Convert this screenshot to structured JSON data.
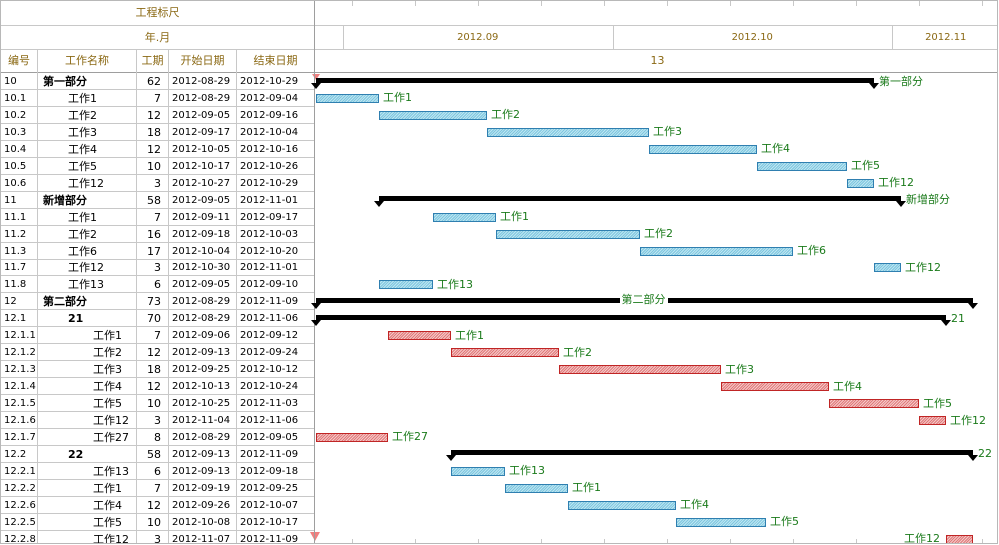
{
  "header": {
    "ruler_title": "工程标尺",
    "ruler_unit": "年.月",
    "col_id": "编号",
    "col_name": "工作名称",
    "col_dur": "工期",
    "col_start": "开始日期",
    "col_end": "结束日期",
    "week_label": "13"
  },
  "timeline": {
    "origin_date": "2012-08-29",
    "months": [
      {
        "label": "2012.09",
        "start": "2012-09-01"
      },
      {
        "label": "2012.10",
        "start": "2012-10-01"
      },
      {
        "label": "2012.11",
        "start": "2012-11-01"
      }
    ]
  },
  "colors": {
    "normal_bar": "#7fc6df",
    "critical_bar": "#e07a7a",
    "summary_bar": "#000000",
    "label": "#1a7a1a",
    "header_text": "#8b6914"
  },
  "rows": [
    {
      "id": "10",
      "name": "第一部分",
      "dur": "62",
      "start": "2012-08-29",
      "end": "2012-10-29",
      "level": 0,
      "kind": "summary",
      "label": "第一部分"
    },
    {
      "id": "10.1",
      "name": "工作1",
      "dur": "7",
      "start": "2012-08-29",
      "end": "2012-09-04",
      "level": 1,
      "kind": "blue",
      "label": "工作1"
    },
    {
      "id": "10.2",
      "name": "工作2",
      "dur": "12",
      "start": "2012-09-05",
      "end": "2012-09-16",
      "level": 1,
      "kind": "blue",
      "label": "工作2"
    },
    {
      "id": "10.3",
      "name": "工作3",
      "dur": "18",
      "start": "2012-09-17",
      "end": "2012-10-04",
      "level": 1,
      "kind": "blue",
      "label": "工作3"
    },
    {
      "id": "10.4",
      "name": "工作4",
      "dur": "12",
      "start": "2012-10-05",
      "end": "2012-10-16",
      "level": 1,
      "kind": "blue",
      "label": "工作4"
    },
    {
      "id": "10.5",
      "name": "工作5",
      "dur": "10",
      "start": "2012-10-17",
      "end": "2012-10-26",
      "level": 1,
      "kind": "blue",
      "label": "工作5"
    },
    {
      "id": "10.6",
      "name": "工作12",
      "dur": "3",
      "start": "2012-10-27",
      "end": "2012-10-29",
      "level": 1,
      "kind": "blue",
      "label": "工作12"
    },
    {
      "id": "11",
      "name": "新增部分",
      "dur": "58",
      "start": "2012-09-05",
      "end": "2012-11-01",
      "level": 0,
      "kind": "summary",
      "label": "新增部分"
    },
    {
      "id": "11.1",
      "name": "工作1",
      "dur": "7",
      "start": "2012-09-11",
      "end": "2012-09-17",
      "level": 1,
      "kind": "blue",
      "label": "工作1"
    },
    {
      "id": "11.2",
      "name": "工作2",
      "dur": "16",
      "start": "2012-09-18",
      "end": "2012-10-03",
      "level": 1,
      "kind": "blue",
      "label": "工作2"
    },
    {
      "id": "11.3",
      "name": "工作6",
      "dur": "17",
      "start": "2012-10-04",
      "end": "2012-10-20",
      "level": 1,
      "kind": "blue",
      "label": "工作6"
    },
    {
      "id": "11.7",
      "name": "工作12",
      "dur": "3",
      "start": "2012-10-30",
      "end": "2012-11-01",
      "level": 1,
      "kind": "blue",
      "label": "工作12"
    },
    {
      "id": "11.8",
      "name": "工作13",
      "dur": "6",
      "start": "2012-09-05",
      "end": "2012-09-10",
      "level": 1,
      "kind": "blue",
      "label": "工作13"
    },
    {
      "id": "12",
      "name": "第二部分",
      "dur": "73",
      "start": "2012-08-29",
      "end": "2012-11-09",
      "level": 0,
      "kind": "summary",
      "label": "第二部分",
      "label_center": true
    },
    {
      "id": "12.1",
      "name": "21",
      "dur": "70",
      "start": "2012-08-29",
      "end": "2012-11-06",
      "level": 1,
      "kind": "summary",
      "label": "21"
    },
    {
      "id": "12.1.1",
      "name": "工作1",
      "dur": "7",
      "start": "2012-09-06",
      "end": "2012-09-12",
      "level": 2,
      "kind": "red",
      "label": "工作1"
    },
    {
      "id": "12.1.2",
      "name": "工作2",
      "dur": "12",
      "start": "2012-09-13",
      "end": "2012-09-24",
      "level": 2,
      "kind": "red",
      "label": "工作2"
    },
    {
      "id": "12.1.3",
      "name": "工作3",
      "dur": "18",
      "start": "2012-09-25",
      "end": "2012-10-12",
      "level": 2,
      "kind": "red",
      "label": "工作3"
    },
    {
      "id": "12.1.4",
      "name": "工作4",
      "dur": "12",
      "start": "2012-10-13",
      "end": "2012-10-24",
      "level": 2,
      "kind": "red",
      "label": "工作4"
    },
    {
      "id": "12.1.5",
      "name": "工作5",
      "dur": "10",
      "start": "2012-10-25",
      "end": "2012-11-03",
      "level": 2,
      "kind": "red",
      "label": "工作5"
    },
    {
      "id": "12.1.6",
      "name": "工作12",
      "dur": "3",
      "start": "2012-11-04",
      "end": "2012-11-06",
      "level": 2,
      "kind": "red",
      "label": "工作12"
    },
    {
      "id": "12.1.7",
      "name": "工作27",
      "dur": "8",
      "start": "2012-08-29",
      "end": "2012-09-05",
      "level": 2,
      "kind": "red",
      "label": "工作27"
    },
    {
      "id": "12.2",
      "name": "22",
      "dur": "58",
      "start": "2012-09-13",
      "end": "2012-11-09",
      "level": 1,
      "kind": "summary",
      "label": "22"
    },
    {
      "id": "12.2.1",
      "name": "工作13",
      "dur": "6",
      "start": "2012-09-13",
      "end": "2012-09-18",
      "level": 2,
      "kind": "blue",
      "label": "工作13"
    },
    {
      "id": "12.2.2",
      "name": "工作1",
      "dur": "7",
      "start": "2012-09-19",
      "end": "2012-09-25",
      "level": 2,
      "kind": "blue",
      "label": "工作1"
    },
    {
      "id": "12.2.6",
      "name": "工作4",
      "dur": "12",
      "start": "2012-09-26",
      "end": "2012-10-07",
      "level": 2,
      "kind": "blue",
      "label": "工作4"
    },
    {
      "id": "12.2.5",
      "name": "工作5",
      "dur": "10",
      "start": "2012-10-08",
      "end": "2012-10-17",
      "level": 2,
      "kind": "blue",
      "label": "工作5"
    },
    {
      "id": "12.2.8",
      "name": "工作12",
      "dur": "3",
      "start": "2012-11-07",
      "end": "2012-11-09",
      "level": 2,
      "kind": "red",
      "label": "工作12",
      "label_left": true
    }
  ]
}
